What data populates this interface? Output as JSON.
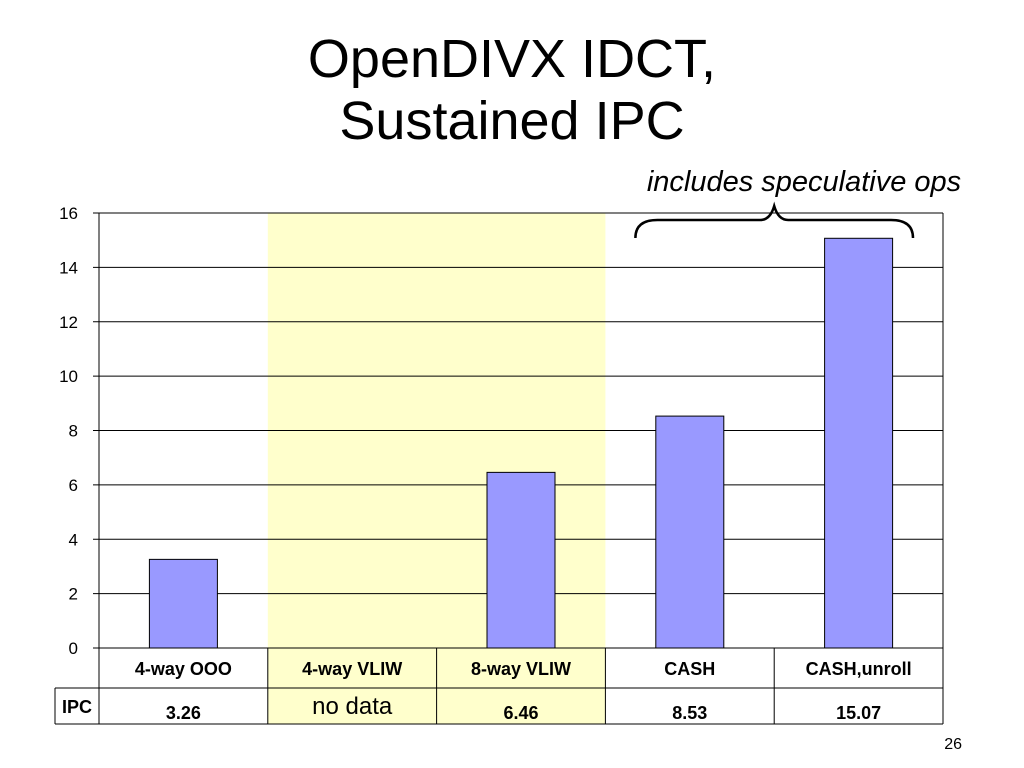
{
  "slide": {
    "title_line1": "OpenDIVX IDCT,",
    "title_line2": "Sustained IPC",
    "annotation": "includes speculative ops",
    "page_number": "26"
  },
  "colors": {
    "bar": "#9999ff",
    "highlight": "#ffffcc"
  },
  "chart_data": {
    "type": "bar",
    "title": "",
    "xlabel": "",
    "ylabel": "",
    "categories": [
      "4-way OOO",
      "4-way VLIW",
      "8-way VLIW",
      "CASH",
      "CASH,unroll"
    ],
    "series": [
      {
        "name": "IPC",
        "values": [
          3.26,
          null,
          6.46,
          8.53,
          15.07
        ]
      }
    ],
    "ylim": [
      0,
      16
    ],
    "yticks": [
      "0",
      "2",
      "4",
      "6",
      "8",
      "10",
      "12",
      "14",
      "16"
    ],
    "grid": true,
    "highlighted_categories": [
      "4-way VLIW",
      "8-way VLIW"
    ],
    "annotated_categories": [
      "CASH",
      "CASH,unroll"
    ],
    "data_table": {
      "row_label": "IPC",
      "cells": [
        "3.26",
        "no data",
        "6.46",
        "8.53",
        "15.07"
      ]
    }
  }
}
